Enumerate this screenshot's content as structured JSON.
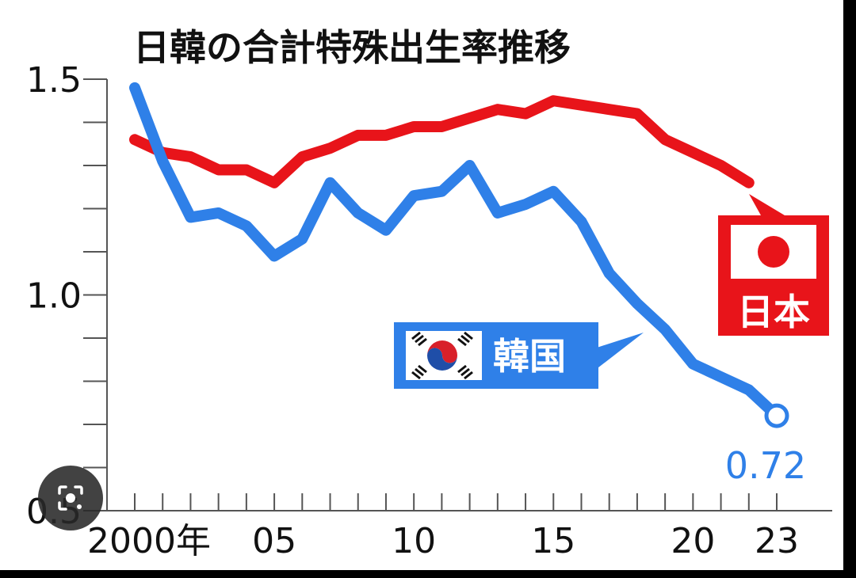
{
  "chart_data": {
    "type": "line",
    "title": "日韓の合計特殊出生率推移",
    "xlabel": "",
    "ylabel": "",
    "x": [
      2000,
      2001,
      2002,
      2003,
      2004,
      2005,
      2006,
      2007,
      2008,
      2009,
      2010,
      2011,
      2012,
      2013,
      2014,
      2015,
      2016,
      2017,
      2018,
      2019,
      2020,
      2021,
      2022,
      2023
    ],
    "x_tick_values": [
      2000,
      2005,
      2010,
      2015,
      2020,
      2023
    ],
    "x_tick_labels": [
      "2000年",
      "05",
      "10",
      "15",
      "20",
      "23"
    ],
    "ylim": [
      0.5,
      1.5
    ],
    "y_ticks": [
      "1.5",
      "1.0",
      "0.5"
    ],
    "y_tick_values": [
      1.5,
      1.0,
      0.5
    ],
    "y_minor_ticks": [
      0.6,
      0.7,
      0.8,
      0.9,
      1.1,
      1.2,
      1.3,
      1.4
    ],
    "grid": false,
    "series": [
      {
        "name": "日本",
        "color": "#e8141a",
        "values": [
          1.36,
          1.33,
          1.32,
          1.29,
          1.29,
          1.26,
          1.32,
          1.34,
          1.37,
          1.37,
          1.39,
          1.39,
          1.41,
          1.43,
          1.42,
          1.45,
          1.44,
          1.43,
          1.42,
          1.36,
          1.33,
          1.3,
          1.26,
          null
        ]
      },
      {
        "name": "韓国",
        "color": "#2f80e8",
        "values": [
          1.48,
          1.31,
          1.18,
          1.19,
          1.16,
          1.09,
          1.13,
          1.26,
          1.19,
          1.15,
          1.23,
          1.24,
          1.3,
          1.19,
          1.21,
          1.24,
          1.17,
          1.05,
          0.98,
          0.92,
          0.84,
          0.81,
          0.78,
          0.72
        ]
      }
    ],
    "annotations": {
      "end_value": "0.72"
    }
  },
  "legend": {
    "japan_label": "日本",
    "korea_label": "韓国",
    "japan_flag_icon": "japan-flag-icon",
    "korea_flag_icon": "korea-flag-icon"
  },
  "overlay": {
    "lens_icon": "lens-search-icon"
  }
}
